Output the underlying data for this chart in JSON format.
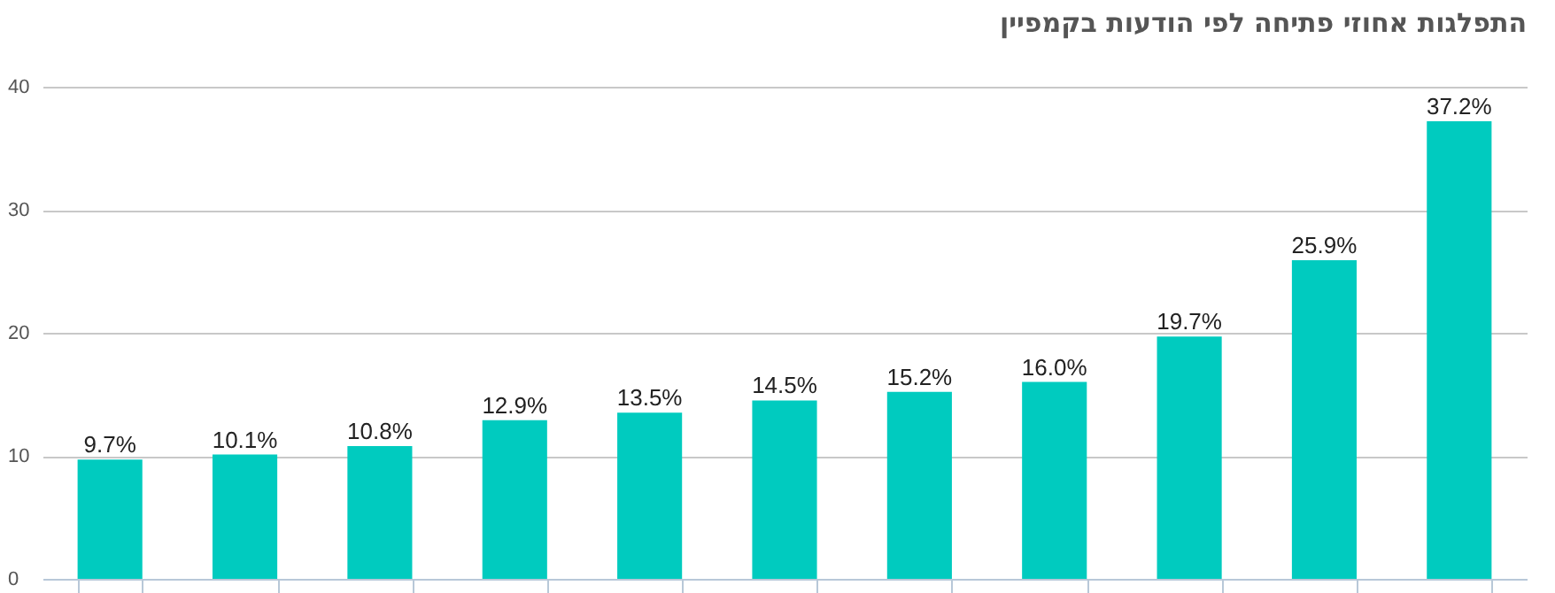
{
  "chart_data": {
    "type": "bar",
    "title": "התפלגות אחוזי פתיחה לפי הודעות בקמפיין",
    "categories": [
      null,
      null,
      null,
      null,
      null,
      null,
      null,
      null,
      null,
      null,
      null
    ],
    "values": [
      9.7,
      10.1,
      10.8,
      12.9,
      13.5,
      14.5,
      15.2,
      16.0,
      19.7,
      25.9,
      37.2
    ],
    "value_labels": [
      "9.7%",
      "10.1%",
      "10.8%",
      "12.9%",
      "13.5%",
      "14.5%",
      "15.2%",
      "16.0%",
      "19.7%",
      "25.9%",
      "37.2%"
    ],
    "color": "#00cbbf",
    "ylim": [
      0,
      40
    ],
    "yticks": [
      0,
      10,
      20,
      30,
      40
    ],
    "grid": "y"
  }
}
